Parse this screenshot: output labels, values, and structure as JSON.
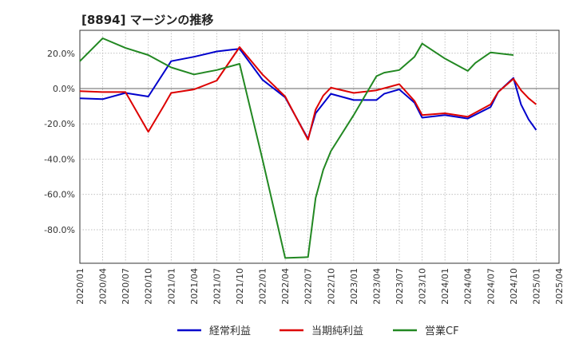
{
  "chart_data": {
    "type": "line",
    "title": "[8894]  マージンの推移",
    "x": [
      "2020/01",
      "2020/04",
      "2020/07",
      "2020/10",
      "2021/01",
      "2021/04",
      "2021/07",
      "2021/10",
      "2022/01",
      "2022/04",
      "2022/07",
      "2022/10",
      "2023/01",
      "2023/04",
      "2023/07",
      "2023/10",
      "2024/01",
      "2024/04",
      "2024/07",
      "2024/10",
      "2025/01",
      "2025/04"
    ],
    "series": [
      {
        "name": "経常利益",
        "color": "#0000cc",
        "points": [
          [
            "2020/01",
            -5.5
          ],
          [
            "2020/04",
            -6.0
          ],
          [
            "2020/07",
            -2.5
          ],
          [
            "2020/10",
            -4.5
          ],
          [
            "2021/01",
            15.5
          ],
          [
            "2021/04",
            18.0
          ],
          [
            "2021/07",
            21.0
          ],
          [
            "2021/09",
            22.0
          ],
          [
            "2021/10",
            22.5
          ],
          [
            "2022/01",
            5.0
          ],
          [
            "2022/04",
            -5.0
          ],
          [
            "2022/07",
            -28.5
          ],
          [
            "2022/08",
            -14.0
          ],
          [
            "2022/10",
            -3.0
          ],
          [
            "2023/01",
            -6.5
          ],
          [
            "2023/04",
            -6.5
          ],
          [
            "2023/05",
            -3.0
          ],
          [
            "2023/07",
            -0.5
          ],
          [
            "2023/09",
            -8.0
          ],
          [
            "2023/10",
            -16.5
          ],
          [
            "2024/01",
            -15.0
          ],
          [
            "2024/04",
            -17.0
          ],
          [
            "2024/07",
            -10.5
          ],
          [
            "2024/08",
            -2.0
          ],
          [
            "2024/10",
            6.0
          ],
          [
            "2024/11",
            -9.0
          ],
          [
            "2024/12",
            -17.5
          ],
          [
            "2025/01",
            -23.5
          ]
        ]
      },
      {
        "name": "当期純利益",
        "color": "#dd0000",
        "points": [
          [
            "2020/01",
            -1.5
          ],
          [
            "2020/04",
            -2.0
          ],
          [
            "2020/07",
            -2.0
          ],
          [
            "2020/10",
            -24.5
          ],
          [
            "2020/12",
            -10.0
          ],
          [
            "2021/01",
            -2.5
          ],
          [
            "2021/04",
            -0.5
          ],
          [
            "2021/07",
            4.5
          ],
          [
            "2021/10",
            23.5
          ],
          [
            "2022/01",
            8.0
          ],
          [
            "2022/04",
            -4.5
          ],
          [
            "2022/07",
            -29.0
          ],
          [
            "2022/08",
            -12.0
          ],
          [
            "2022/09",
            -4.0
          ],
          [
            "2022/10",
            0.5
          ],
          [
            "2023/01",
            -2.5
          ],
          [
            "2023/04",
            -1.0
          ],
          [
            "2023/07",
            2.5
          ],
          [
            "2023/09",
            -7.0
          ],
          [
            "2023/10",
            -15.0
          ],
          [
            "2024/01",
            -14.0
          ],
          [
            "2024/04",
            -16.0
          ],
          [
            "2024/07",
            -9.0
          ],
          [
            "2024/08",
            -2.0
          ],
          [
            "2024/10",
            5.5
          ],
          [
            "2024/11",
            -1.0
          ],
          [
            "2024/12",
            -5.5
          ],
          [
            "2025/01",
            -9.0
          ]
        ]
      },
      {
        "name": "営業CF",
        "color": "#228822",
        "points": [
          [
            "2020/01",
            15.5
          ],
          [
            "2020/04",
            28.5
          ],
          [
            "2020/07",
            23.0
          ],
          [
            "2020/10",
            19.0
          ],
          [
            "2021/01",
            12.0
          ],
          [
            "2021/04",
            8.0
          ],
          [
            "2021/07",
            10.5
          ],
          [
            "2021/10",
            14.0
          ],
          [
            "2022/01",
            -40.0
          ],
          [
            "2022/04",
            -96.0
          ],
          [
            "2022/07",
            -95.5
          ],
          [
            "2022/08",
            -62.0
          ],
          [
            "2022/09",
            -46.0
          ],
          [
            "2022/10",
            -35.5
          ],
          [
            "2023/01",
            -15.0
          ],
          [
            "2023/04",
            7.0
          ],
          [
            "2023/05",
            9.0
          ],
          [
            "2023/07",
            10.5
          ],
          [
            "2023/09",
            18.0
          ],
          [
            "2023/10",
            25.5
          ],
          [
            "2024/01",
            17.0
          ],
          [
            "2024/04",
            10.0
          ],
          [
            "2024/05",
            14.5
          ],
          [
            "2024/07",
            20.5
          ],
          [
            "2024/10",
            19.0
          ]
        ]
      }
    ],
    "y_ticks": [
      20,
      0,
      -20,
      -40,
      -60,
      -80
    ],
    "y_tick_labels": [
      "20.0%",
      "0.0%",
      "-20.0%",
      "-40.0%",
      "-60.0%",
      "-80.0%"
    ],
    "ylim": [
      -99,
      33
    ],
    "xlim": [
      "2020/01",
      "2025/04"
    ],
    "legend": [
      "経常利益",
      "当期純利益",
      "営業CF"
    ],
    "legend_position": "bottom",
    "grid": true
  }
}
